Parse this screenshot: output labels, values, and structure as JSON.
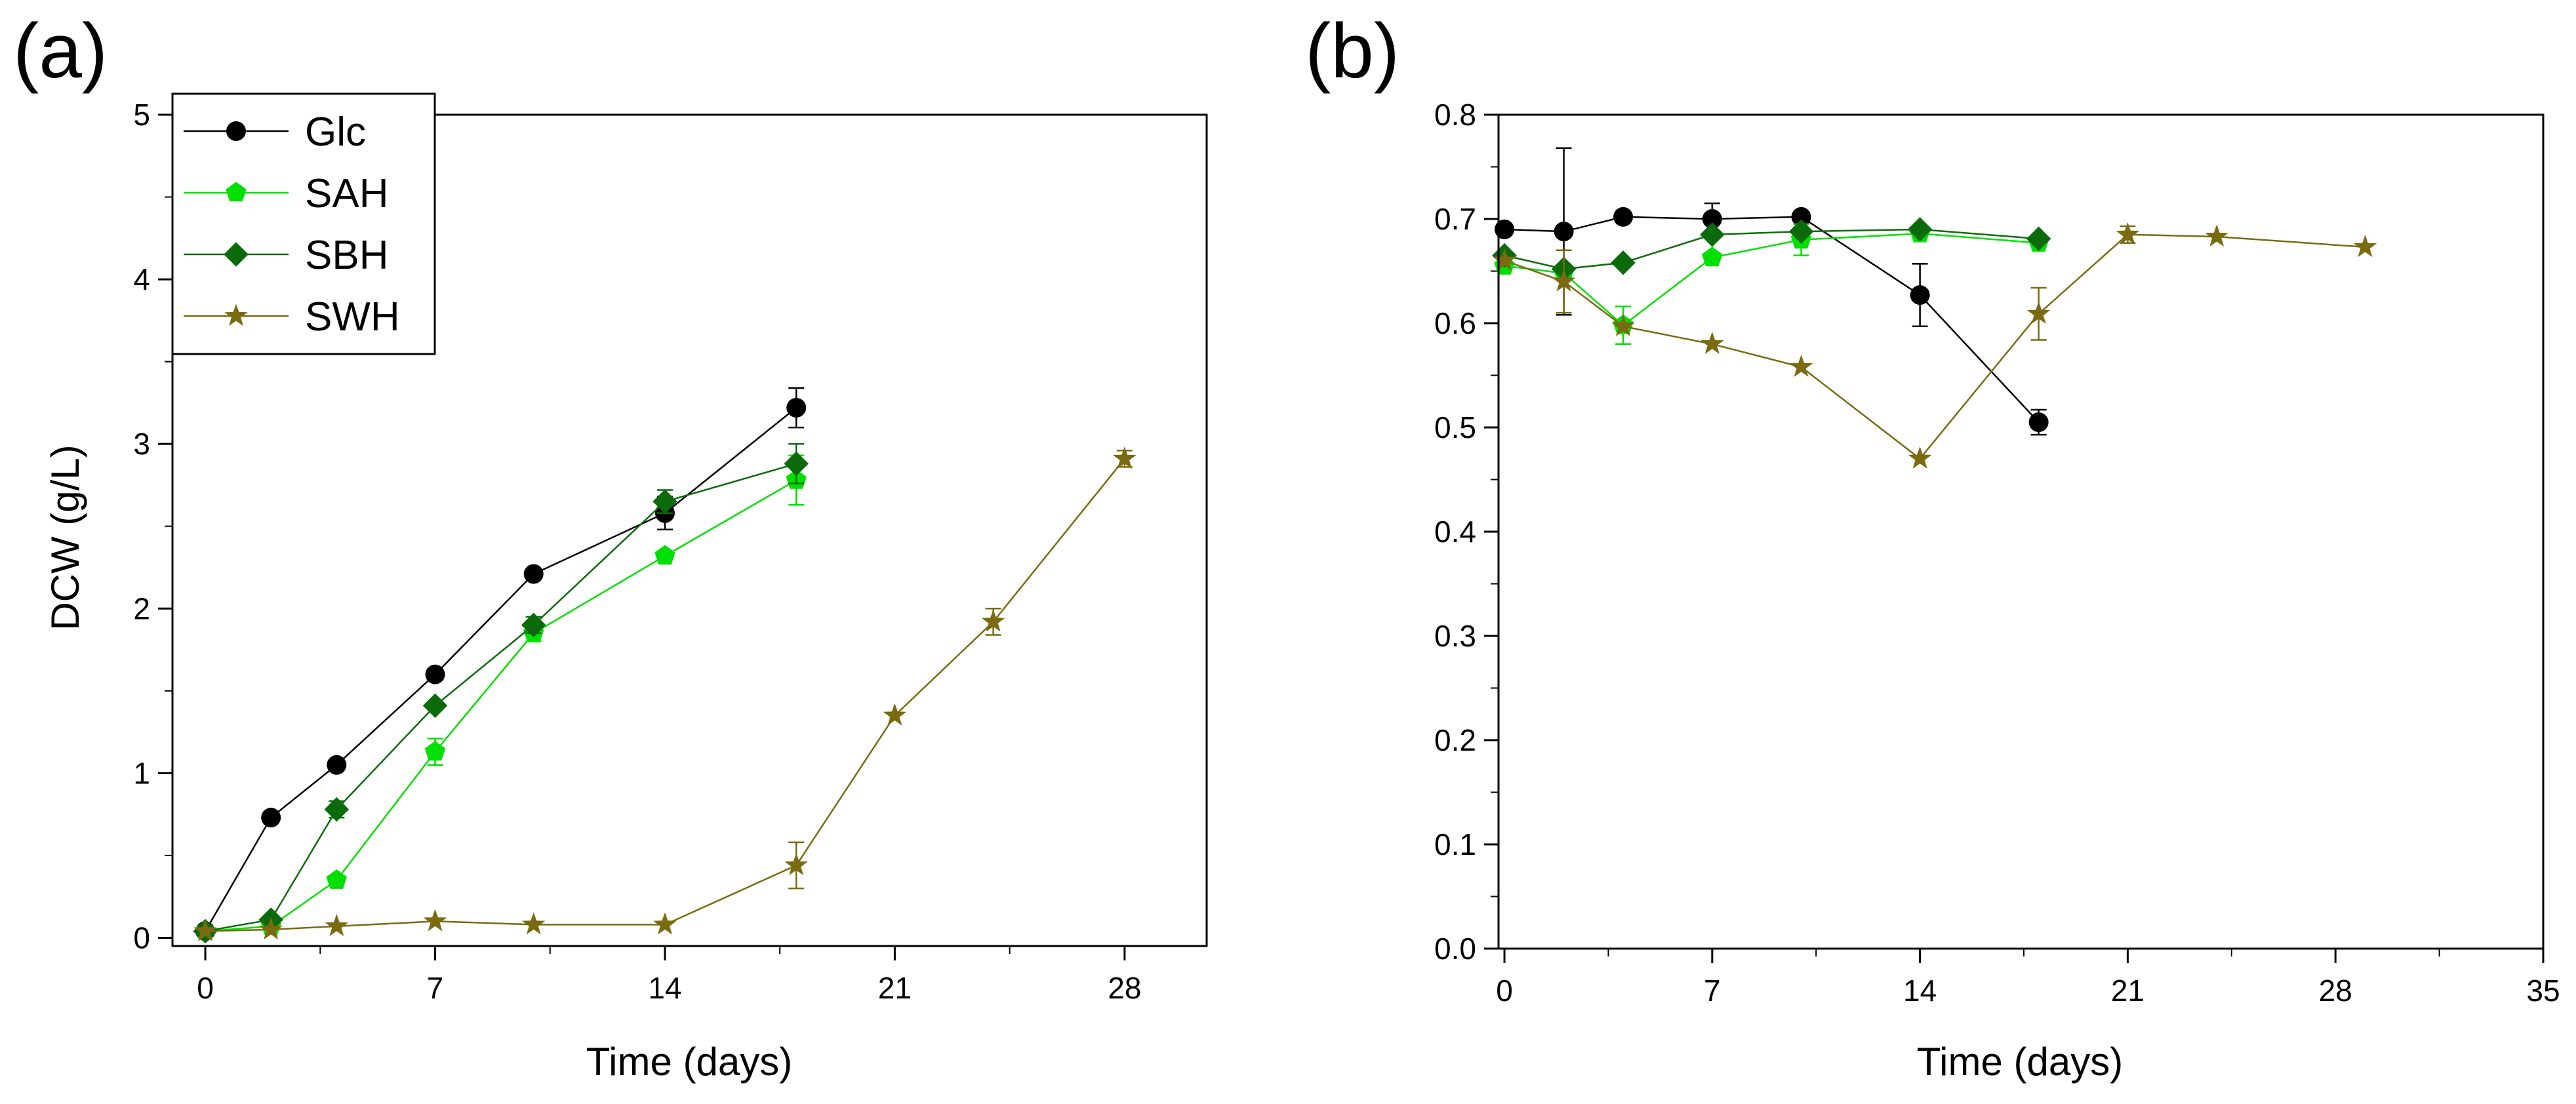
{
  "chart_data": [
    {
      "id": "a",
      "panel_label": "(a)",
      "type": "line",
      "xlabel": "Time (days)",
      "ylabel": "DCW (g/L)",
      "xlim": [
        -1,
        30.5
      ],
      "ylim": [
        -0.05,
        5
      ],
      "xticks": [
        0,
        7,
        14,
        21,
        28
      ],
      "yticks": [
        0,
        1,
        2,
        3,
        4,
        5
      ],
      "legend": {
        "position": "top-left",
        "entries": [
          "Glc",
          "SAH",
          "SBH",
          "SWH"
        ]
      },
      "series": [
        {
          "name": "Glc",
          "color": "#000000",
          "marker": "circle",
          "x": [
            0,
            2,
            4,
            7,
            10,
            14,
            18
          ],
          "y": [
            0.04,
            0.73,
            1.05,
            1.6,
            2.21,
            2.58,
            3.22
          ],
          "err": [
            0,
            0,
            0,
            0,
            0,
            0.1,
            0.12
          ]
        },
        {
          "name": "SAH",
          "color": "#00e000",
          "marker": "pentagon",
          "x": [
            0,
            2,
            4,
            7,
            10,
            14,
            18
          ],
          "y": [
            0.04,
            0.07,
            0.35,
            1.13,
            1.85,
            2.32,
            2.78
          ],
          "err": [
            0,
            0,
            0,
            0.08,
            0.05,
            0,
            0.15
          ]
        },
        {
          "name": "SBH",
          "color": "#0b6b0b",
          "marker": "diamond",
          "x": [
            0,
            2,
            4,
            7,
            10,
            14,
            18
          ],
          "y": [
            0.04,
            0.11,
            0.78,
            1.41,
            1.9,
            2.65,
            2.88
          ],
          "err": [
            0,
            0,
            0.05,
            0,
            0.05,
            0.07,
            0.12
          ]
        },
        {
          "name": "SWH",
          "color": "#7a6a10",
          "marker": "star",
          "x": [
            0,
            2,
            4,
            7,
            10,
            14,
            18,
            21,
            24,
            28
          ],
          "y": [
            0.04,
            0.05,
            0.07,
            0.1,
            0.08,
            0.08,
            0.44,
            1.35,
            1.92,
            2.91
          ],
          "err": [
            0,
            0,
            0,
            0,
            0,
            0,
            0.14,
            0,
            0.08,
            0.05
          ]
        }
      ]
    },
    {
      "id": "b",
      "panel_label": "(b)",
      "type": "line",
      "xlabel": "Time (days)",
      "ylabel": "",
      "xlim": [
        -0.2,
        35
      ],
      "ylim": [
        0,
        0.8
      ],
      "xticks": [
        0,
        7,
        14,
        21,
        28,
        35
      ],
      "yticks": [
        0.0,
        0.1,
        0.2,
        0.3,
        0.4,
        0.5,
        0.6,
        0.7,
        0.8
      ],
      "series": [
        {
          "name": "Glc",
          "color": "#000000",
          "marker": "circle",
          "x": [
            0,
            2,
            4,
            7,
            10,
            14,
            18
          ],
          "y": [
            0.69,
            0.688,
            0.702,
            0.7,
            0.702,
            0.627,
            0.505
          ],
          "err": [
            0,
            0.08,
            0,
            0.015,
            0,
            0.03,
            0.012
          ]
        },
        {
          "name": "SAH",
          "color": "#00e000",
          "marker": "pentagon",
          "x": [
            0,
            2,
            4,
            7,
            10,
            14,
            18
          ],
          "y": [
            0.655,
            0.648,
            0.598,
            0.663,
            0.68,
            0.686,
            0.677
          ],
          "err": [
            0,
            0,
            0.018,
            0,
            0.015,
            0,
            0
          ]
        },
        {
          "name": "SBH",
          "color": "#0b6b0b",
          "marker": "diamond",
          "x": [
            0,
            2,
            4,
            7,
            10,
            14,
            18
          ],
          "y": [
            0.665,
            0.652,
            0.658,
            0.685,
            0.688,
            0.69,
            0.681
          ],
          "err": [
            0,
            0,
            0,
            0,
            0,
            0,
            0
          ]
        },
        {
          "name": "SWH",
          "color": "#7a6a10",
          "marker": "star",
          "x": [
            0,
            2,
            4,
            7,
            10,
            14,
            18,
            21,
            24,
            29
          ],
          "y": [
            0.66,
            0.64,
            0.597,
            0.58,
            0.558,
            0.47,
            0.609,
            0.685,
            0.683,
            0.673
          ],
          "err": [
            0,
            0.03,
            0,
            0,
            0,
            0,
            0.025,
            0.008,
            0,
            0
          ]
        }
      ]
    }
  ]
}
